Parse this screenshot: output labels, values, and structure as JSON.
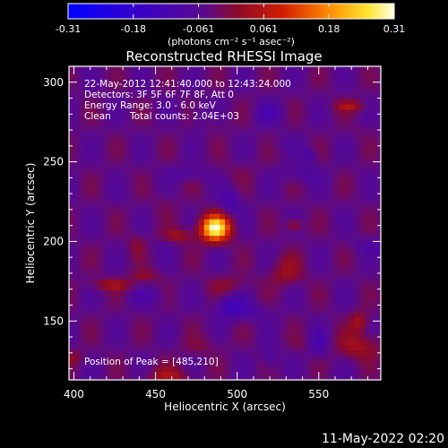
{
  "colorbar": {
    "ticks": [
      "-0.31",
      "-0.18",
      "-0.061",
      "0.061",
      "0.18",
      "0.31"
    ],
    "unit_label": "(photons cm⁻² s⁻¹ asec⁻²)"
  },
  "title": "Reconstructed RHESSI Image",
  "info": {
    "time_range": "22-May-2012 12:41:40.000 to 12:43:24.000",
    "detectors": "Detectors: 3F 5F 6F 7F 8F, Att 0",
    "energy": "Energy Range: 3.0 - 6.0 keV",
    "method": "Clean",
    "counts": "Total counts: 2.04E+03",
    "peak": "Position of Peak = [485,210]"
  },
  "axes": {
    "xlabel": "Heliocentric X (arcsec)",
    "ylabel": "Heliocentric Y (arcsec)",
    "xticks": [
      {
        "value": 400,
        "label": "400"
      },
      {
        "value": 450,
        "label": "450"
      },
      {
        "value": 500,
        "label": "500"
      },
      {
        "value": 550,
        "label": "550"
      }
    ],
    "yticks": [
      {
        "value": 150,
        "label": "150"
      },
      {
        "value": 200,
        "label": "200"
      },
      {
        "value": 250,
        "label": "250"
      },
      {
        "value": 300,
        "label": "300"
      }
    ],
    "xrange": [
      397,
      588
    ],
    "yrange": [
      113,
      310
    ]
  },
  "peak_position": [
    485,
    210
  ],
  "footer": "11-May-2022 02:20",
  "colors": {
    "background": "#000000",
    "text": "#ffffff",
    "colormap": [
      "#0000ff",
      "#3a00c8",
      "#5a0a8c",
      "#8c0a28",
      "#d21e00",
      "#ff8c00",
      "#ffe632",
      "#ffffe6"
    ]
  }
}
